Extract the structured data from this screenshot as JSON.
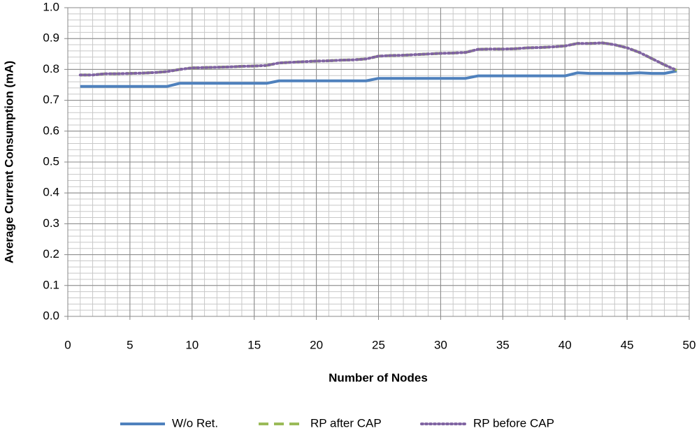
{
  "chart_data": {
    "type": "line",
    "x_label": "Number of Nodes",
    "y_label": "Average Current Consumption (mA)",
    "x": [
      1,
      2,
      3,
      4,
      5,
      6,
      7,
      8,
      9,
      10,
      11,
      12,
      13,
      14,
      15,
      16,
      17,
      18,
      19,
      20,
      21,
      22,
      23,
      24,
      25,
      26,
      27,
      28,
      29,
      30,
      31,
      32,
      33,
      34,
      35,
      36,
      37,
      38,
      39,
      40,
      41,
      42,
      43,
      44,
      45,
      46,
      47,
      48,
      49
    ],
    "series": [
      {
        "name": "W/o Ret.",
        "color": "#4f81bd",
        "style": "solid",
        "values": [
          0.745,
          0.745,
          0.745,
          0.745,
          0.745,
          0.745,
          0.745,
          0.745,
          0.755,
          0.755,
          0.755,
          0.755,
          0.755,
          0.755,
          0.755,
          0.755,
          0.763,
          0.763,
          0.763,
          0.763,
          0.763,
          0.763,
          0.763,
          0.763,
          0.771,
          0.771,
          0.771,
          0.771,
          0.771,
          0.771,
          0.771,
          0.771,
          0.779,
          0.779,
          0.779,
          0.779,
          0.779,
          0.779,
          0.779,
          0.779,
          0.789,
          0.787,
          0.787,
          0.787,
          0.787,
          0.789,
          0.787,
          0.787,
          0.795
        ]
      },
      {
        "name": "RP after CAP",
        "color": "#9bbb59",
        "style": "dashed",
        "values": [
          0.782,
          0.782,
          0.786,
          0.786,
          0.787,
          0.788,
          0.79,
          0.793,
          0.8,
          0.805,
          0.806,
          0.807,
          0.808,
          0.81,
          0.811,
          0.813,
          0.821,
          0.823,
          0.825,
          0.827,
          0.828,
          0.83,
          0.831,
          0.834,
          0.843,
          0.845,
          0.846,
          0.848,
          0.85,
          0.852,
          0.853,
          0.855,
          0.865,
          0.866,
          0.866,
          0.867,
          0.87,
          0.871,
          0.873,
          0.876,
          0.884,
          0.884,
          0.886,
          0.88,
          0.87,
          0.855,
          0.835,
          0.815,
          0.797
        ]
      },
      {
        "name": "RP before CAP",
        "color": "#8064a2",
        "style": "dotted",
        "values": [
          0.782,
          0.782,
          0.786,
          0.786,
          0.787,
          0.788,
          0.79,
          0.793,
          0.8,
          0.805,
          0.806,
          0.807,
          0.808,
          0.81,
          0.811,
          0.813,
          0.821,
          0.823,
          0.825,
          0.827,
          0.828,
          0.83,
          0.831,
          0.834,
          0.843,
          0.845,
          0.846,
          0.848,
          0.85,
          0.852,
          0.853,
          0.855,
          0.865,
          0.866,
          0.866,
          0.867,
          0.87,
          0.871,
          0.873,
          0.876,
          0.884,
          0.884,
          0.886,
          0.88,
          0.87,
          0.855,
          0.835,
          0.815,
          0.797
        ]
      }
    ],
    "xlim": [
      0,
      50
    ],
    "xticks": [
      0,
      5,
      10,
      15,
      20,
      25,
      30,
      35,
      40,
      45,
      50
    ],
    "ylim": [
      0,
      1
    ],
    "yticks": [
      {
        "value": 0,
        "label": "0.0"
      },
      0.1,
      0.2,
      0.3,
      0.4,
      0.5,
      0.6,
      0.7,
      0.8,
      0.9,
      {
        "value": 1,
        "label": "1.0"
      }
    ],
    "grid": true,
    "minor_grid": {
      "x": 1,
      "y": 0.02
    },
    "legend": "bottom"
  }
}
